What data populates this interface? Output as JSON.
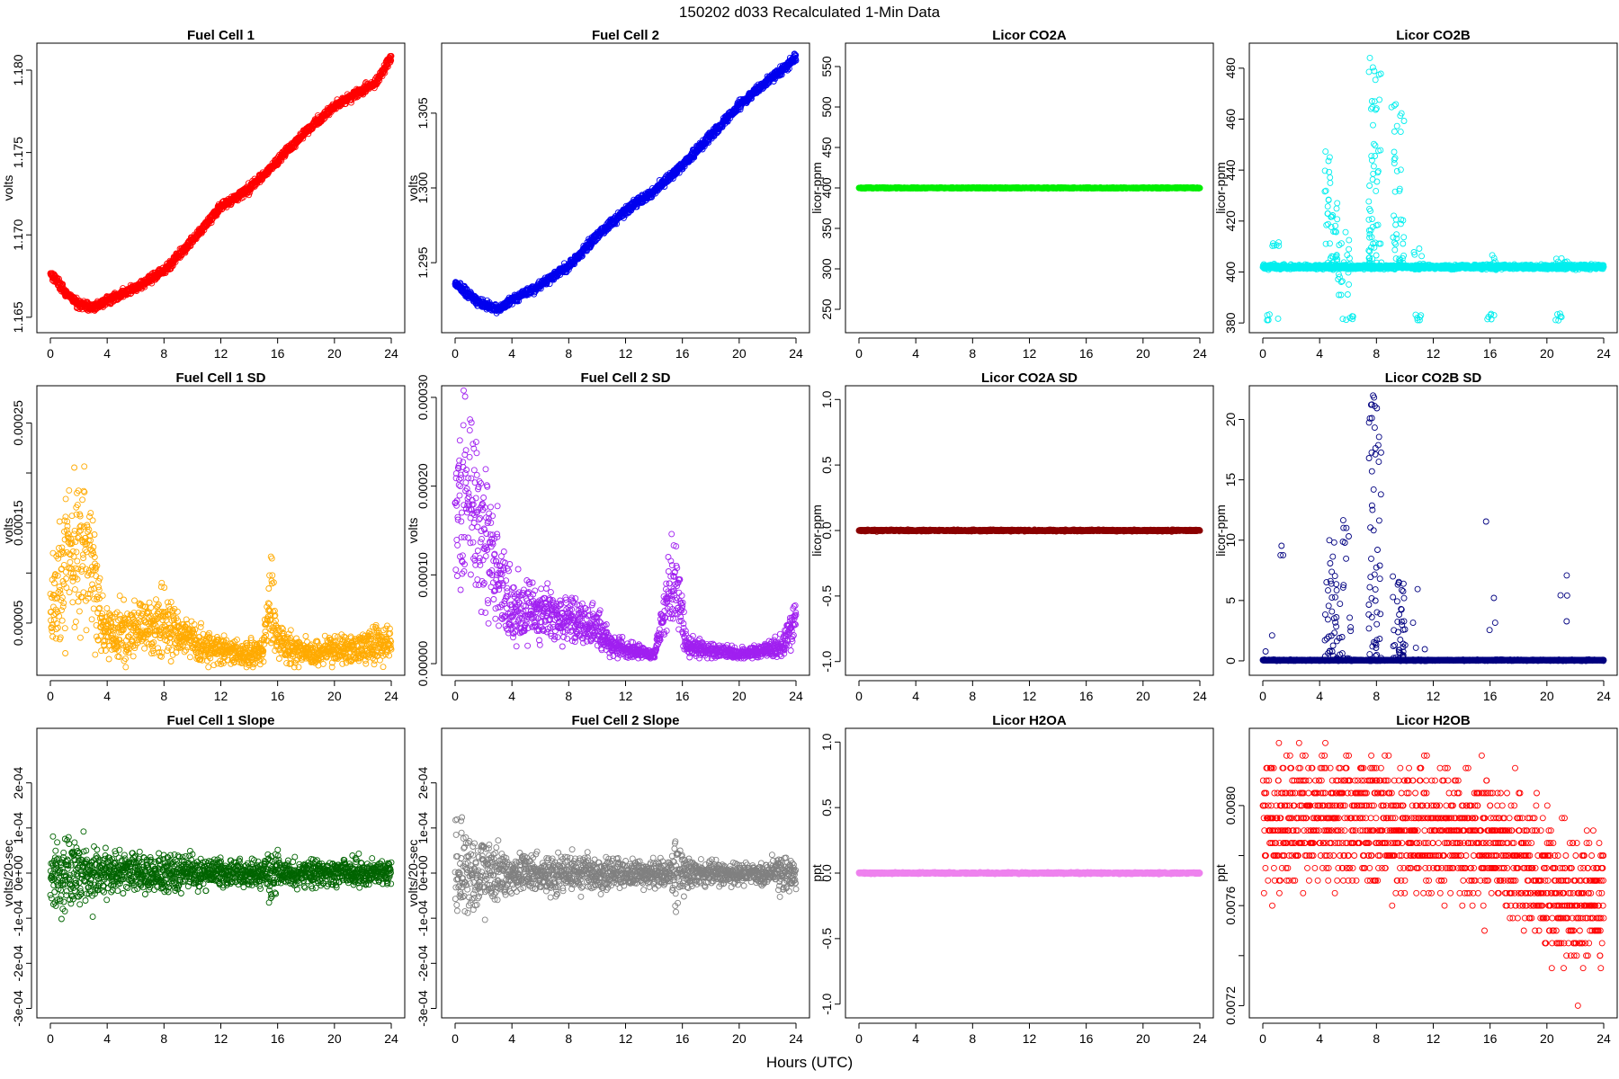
{
  "figure": {
    "suptitle": "150202   d033   Recalculated 1-Min Data",
    "xlabel": "Hours (UTC)"
  },
  "chart_data": [
    {
      "id": "fc1",
      "type": "scatter",
      "title": "Fuel Cell 1",
      "ylabel": "volts",
      "color": "#ff0000",
      "xlim": [
        0,
        24
      ],
      "ylim": [
        1.1645,
        1.1812
      ],
      "xticks": [
        0,
        4,
        8,
        12,
        16,
        20,
        24
      ],
      "yticks": [
        1.165,
        1.17,
        1.175,
        1.18
      ],
      "ytick_labels": [
        "1.165",
        "1.170",
        "1.175",
        "1.180"
      ],
      "gen": {
        "kind": "curve",
        "n": 1440,
        "spread": 0.00018,
        "knots": [
          [
            0,
            1.1677
          ],
          [
            0.5,
            1.1672
          ],
          [
            1,
            1.1665
          ],
          [
            2,
            1.1658
          ],
          [
            3,
            1.1656
          ],
          [
            4,
            1.166
          ],
          [
            6,
            1.1668
          ],
          [
            8,
            1.1678
          ],
          [
            10,
            1.1697
          ],
          [
            12,
            1.1717
          ],
          [
            14,
            1.1728
          ],
          [
            16,
            1.1745
          ],
          [
            18,
            1.1763
          ],
          [
            20,
            1.1778
          ],
          [
            22,
            1.1788
          ],
          [
            23,
            1.1793
          ],
          [
            24,
            1.1808
          ]
        ]
      }
    },
    {
      "id": "fc2",
      "type": "scatter",
      "title": "Fuel Cell 2",
      "ylabel": "volts",
      "color": "#0000ee",
      "xlim": [
        0,
        24
      ],
      "ylim": [
        1.2908,
        1.3092
      ],
      "xticks": [
        0,
        4,
        8,
        12,
        16,
        20,
        24
      ],
      "yticks": [
        1.295,
        1.3,
        1.305
      ],
      "ytick_labels": [
        "1.295",
        "1.300",
        "1.305"
      ],
      "gen": {
        "kind": "curve",
        "n": 1440,
        "spread": 0.0002,
        "knots": [
          [
            0,
            1.2937
          ],
          [
            1,
            1.2928
          ],
          [
            2,
            1.2922
          ],
          [
            3,
            1.2919
          ],
          [
            4,
            1.2925
          ],
          [
            6,
            1.2935
          ],
          [
            8,
            1.2948
          ],
          [
            10,
            1.2968
          ],
          [
            12,
            1.2985
          ],
          [
            14,
            1.2998
          ],
          [
            16,
            1.3015
          ],
          [
            18,
            1.3035
          ],
          [
            20,
            1.3055
          ],
          [
            22,
            1.3072
          ],
          [
            23,
            1.3078
          ],
          [
            24,
            1.3088
          ]
        ]
      }
    },
    {
      "id": "co2a",
      "type": "scatter",
      "title": "Licor CO2A",
      "ylabel": "licor-ppm",
      "color": "#00ee00",
      "xlim": [
        0,
        24
      ],
      "ylim": [
        230,
        570
      ],
      "xticks": [
        0,
        4,
        8,
        12,
        16,
        20,
        24
      ],
      "yticks": [
        250,
        300,
        350,
        400,
        450,
        500,
        550
      ],
      "ytick_labels": [
        "250",
        "300",
        "350",
        "400",
        "450",
        "500",
        "550"
      ],
      "gen": {
        "kind": "flat",
        "n": 1440,
        "value": 400,
        "spread": 0.4
      }
    },
    {
      "id": "co2b",
      "type": "scatter",
      "title": "Licor CO2B",
      "ylabel": "licor-ppm",
      "color": "#00eeee",
      "xlim": [
        0,
        24
      ],
      "ylim": [
        379,
        487
      ],
      "xticks": [
        0,
        4,
        8,
        12,
        16,
        20,
        24
      ],
      "yticks": [
        380,
        400,
        420,
        440,
        460,
        480
      ],
      "ytick_labels": [
        "380",
        "400",
        "420",
        "440",
        "460",
        "480"
      ],
      "gen": {
        "kind": "flat_outliers",
        "n": 1440,
        "value": 402,
        "spread": 0.6,
        "clusters": [
          [
            1,
            410,
            412,
            6
          ],
          [
            0.7,
            381,
            384,
            6
          ],
          [
            4.8,
            403,
            448,
            40
          ],
          [
            5.7,
            391,
            416,
            20
          ],
          [
            6,
            381,
            384,
            6
          ],
          [
            7.9,
            403,
            485,
            60
          ],
          [
            9.5,
            403,
            467,
            40
          ],
          [
            11,
            381,
            384,
            6
          ],
          [
            11,
            403,
            412,
            6
          ],
          [
            16,
            381,
            384,
            6
          ],
          [
            16,
            403,
            412,
            6
          ],
          [
            21,
            381,
            384,
            6
          ],
          [
            21,
            403,
            412,
            6
          ]
        ]
      }
    },
    {
      "id": "fc1sd",
      "type": "scatter",
      "title": "Fuel Cell 1 SD",
      "ylabel": "volts",
      "color": "#ffaa00",
      "xlim": [
        0,
        24
      ],
      "ylim": [
        5e-06,
        0.00028
      ],
      "xticks": [
        0,
        4,
        8,
        12,
        16,
        20,
        24
      ],
      "yticks": [
        5e-05,
        0.00015,
        0.00025
      ],
      "ytick_labels": [
        "0.00005",
        "0.00015",
        "0.00025"
      ],
      "minor_yticks": [
        0.0001,
        0.0002
      ],
      "gen": {
        "kind": "noisy_sd",
        "n": 1440,
        "knots": [
          [
            0,
            6e-05
          ],
          [
            1,
            0.00012
          ],
          [
            2,
            0.00013
          ],
          [
            3,
            0.0001
          ],
          [
            3.8,
            4e-05
          ],
          [
            5,
            4e-05
          ],
          [
            8,
            5e-05
          ],
          [
            10,
            3e-05
          ],
          [
            13,
            2e-05
          ],
          [
            15,
            2e-05
          ],
          [
            15.5,
            8e-05
          ],
          [
            16,
            3e-05
          ],
          [
            18,
            2e-05
          ],
          [
            24,
            3e-05
          ]
        ],
        "rel": 0.45
      }
    },
    {
      "id": "fc2sd",
      "type": "scatter",
      "title": "Fuel Cell 2 SD",
      "ylabel": "volts",
      "color": "#a020f0",
      "xlim": [
        0,
        24
      ],
      "ylim": [
        -5e-06,
        0.000305
      ],
      "xticks": [
        0,
        4,
        8,
        12,
        16,
        20,
        24
      ],
      "yticks": [
        0,
        0.0001,
        0.0002,
        0.0003
      ],
      "ytick_labels": [
        "0.00000",
        "0.00010",
        "0.00020",
        "0.00030"
      ],
      "gen": {
        "kind": "noisy_sd",
        "n": 1440,
        "knots": [
          [
            0,
            0.00016
          ],
          [
            1,
            0.0002
          ],
          [
            2,
            0.00015
          ],
          [
            3,
            0.0001
          ],
          [
            4,
            6e-05
          ],
          [
            8,
            5e-05
          ],
          [
            10,
            4e-05
          ],
          [
            11,
            2e-05
          ],
          [
            14,
            1e-05
          ],
          [
            15.5,
            0.0001
          ],
          [
            16.3,
            2e-05
          ],
          [
            20,
            1e-05
          ],
          [
            23,
            2e-05
          ],
          [
            24,
            5e-05
          ]
        ],
        "rel": 0.4
      }
    },
    {
      "id": "co2asd",
      "type": "scatter",
      "title": "Licor CO2A SD",
      "ylabel": "licor-ppm",
      "color": "#8b0000",
      "xlim": [
        0,
        24
      ],
      "ylim": [
        -1.05,
        1.05
      ],
      "xticks": [
        0,
        4,
        8,
        12,
        16,
        20,
        24
      ],
      "yticks": [
        -1,
        -0.5,
        0,
        0.5,
        1
      ],
      "ytick_labels": [
        "-1.0",
        "-0.5",
        "0.0",
        "0.5",
        "1.0"
      ],
      "gen": {
        "kind": "flat",
        "n": 1440,
        "value": 0,
        "spread": 0.004
      }
    },
    {
      "id": "co2bsd",
      "type": "scatter",
      "title": "Licor CO2B SD",
      "ylabel": "licor-ppm",
      "color": "#000080",
      "xlim": [
        0,
        24
      ],
      "ylim": [
        -0.6,
        22.2
      ],
      "xticks": [
        0,
        4,
        8,
        12,
        16,
        20,
        24
      ],
      "yticks": [
        0,
        5,
        10,
        15,
        20
      ],
      "ytick_labels": [
        "0",
        "5",
        "10",
        "15",
        "20"
      ],
      "gen": {
        "kind": "flat_outliers",
        "n": 1440,
        "value": 0.05,
        "spread": 0.03,
        "clusters": [
          [
            0.2,
            0,
            5,
            3
          ],
          [
            1,
            2,
            12,
            3
          ],
          [
            4.8,
            0,
            10,
            40
          ],
          [
            5.8,
            0,
            12,
            20
          ],
          [
            7.9,
            0,
            22,
            60
          ],
          [
            9.6,
            0,
            7,
            40
          ],
          [
            11,
            0,
            12,
            4
          ],
          [
            16,
            0,
            12,
            4
          ],
          [
            21,
            0,
            12,
            4
          ]
        ]
      }
    },
    {
      "id": "fc1slope",
      "type": "scatter",
      "title": "Fuel Cell 1 Slope",
      "ylabel": "volts/20-sec",
      "color": "#006400",
      "xlim": [
        0,
        24
      ],
      "ylim": [
        -0.000305,
        0.000305
      ],
      "xticks": [
        0,
        4,
        8,
        12,
        16,
        20,
        24
      ],
      "yticks": [
        -0.0003,
        -0.0002,
        -0.0001,
        0,
        0.0001,
        0.0002
      ],
      "ytick_labels": [
        "-3e-04",
        "-2e-04",
        "-1e-04",
        "0e+00",
        "1e-04",
        "2e-04"
      ],
      "gen": {
        "kind": "noisy_zero",
        "n": 1440,
        "knots": [
          [
            0,
            6e-05
          ],
          [
            3,
            5e-05
          ],
          [
            4,
            3e-05
          ],
          [
            8,
            3e-05
          ],
          [
            12,
            2e-05
          ],
          [
            15,
            2e-05
          ],
          [
            15.5,
            5e-05
          ],
          [
            16.5,
            2e-05
          ],
          [
            24,
            2e-05
          ]
        ]
      }
    },
    {
      "id": "fc2slope",
      "type": "scatter",
      "title": "Fuel Cell 2 Slope",
      "ylabel": "volts/20-sec",
      "color": "#808080",
      "xlim": [
        0,
        24
      ],
      "ylim": [
        -0.000305,
        0.000305
      ],
      "xticks": [
        0,
        4,
        8,
        12,
        16,
        20,
        24
      ],
      "yticks": [
        -0.0003,
        -0.0002,
        -0.0001,
        0,
        0.0001,
        0.0002
      ],
      "ytick_labels": [
        "-3e-04",
        "-2e-04",
        "-1e-04",
        "0e+00",
        "1e-04",
        "2e-04"
      ],
      "gen": {
        "kind": "noisy_zero",
        "n": 1440,
        "knots": [
          [
            0,
            7e-05
          ],
          [
            3,
            5e-05
          ],
          [
            4,
            3e-05
          ],
          [
            8,
            3e-05
          ],
          [
            12,
            2e-05
          ],
          [
            15,
            2e-05
          ],
          [
            15.5,
            6e-05
          ],
          [
            16.5,
            2e-05
          ],
          [
            22,
            1.5e-05
          ],
          [
            23,
            3e-05
          ],
          [
            24,
            2e-05
          ]
        ]
      }
    },
    {
      "id": "h2oa",
      "type": "scatter",
      "title": "Licor H2OA",
      "ylabel": "ppt",
      "color": "#ee82ee",
      "xlim": [
        0,
        24
      ],
      "ylim": [
        -1.05,
        1.05
      ],
      "xticks": [
        0,
        4,
        8,
        12,
        16,
        20,
        24
      ],
      "yticks": [
        -1,
        -0.5,
        0,
        0.5,
        1
      ],
      "ytick_labels": [
        "-1.0",
        "-0.5",
        "0.0",
        "0.5",
        "1.0"
      ],
      "gen": {
        "kind": "flat",
        "n": 1440,
        "value": 0,
        "spread": 0.004
      }
    },
    {
      "id": "h2ob",
      "type": "scatter",
      "title": "Licor H2OB",
      "ylabel": "ppt",
      "color": "#ff0000",
      "xlim": [
        0,
        24
      ],
      "ylim": [
        0.00718,
        0.00828
      ],
      "xticks": [
        0,
        4,
        8,
        12,
        16,
        20,
        24
      ],
      "yticks": [
        0.0072,
        0.0076,
        0.008
      ],
      "ytick_labels": [
        "0.0072",
        "0.0076",
        "0.0080"
      ],
      "minor_yticks": [
        0.0074,
        0.0078
      ],
      "gen": {
        "kind": "quantized",
        "n": 1440,
        "step": 5e-05,
        "rel": 0.00018,
        "knots": [
          [
            0,
            0.00792
          ],
          [
            4,
            0.00795
          ],
          [
            8,
            0.00792
          ],
          [
            12,
            0.0079
          ],
          [
            16,
            0.00785
          ],
          [
            18,
            0.0078
          ],
          [
            20,
            0.0077
          ],
          [
            22,
            0.00762
          ],
          [
            24,
            0.00762
          ]
        ]
      }
    }
  ]
}
